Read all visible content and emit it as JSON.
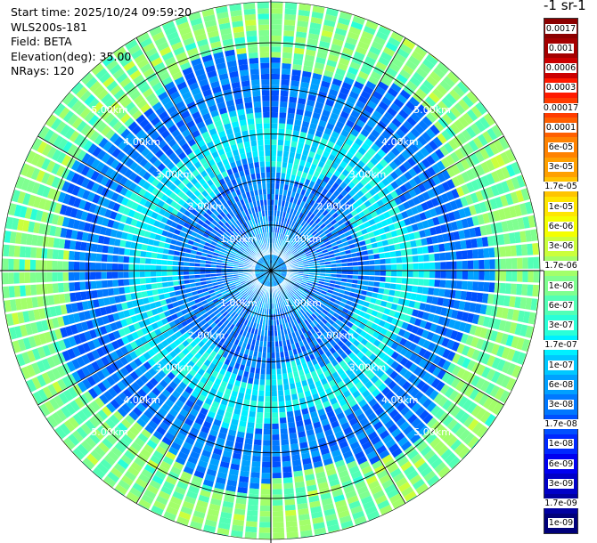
{
  "info": {
    "start_time": "Start time: 2025/10/24 09:59:20",
    "station": "WLS200s-181",
    "field": "Field: BETA",
    "elevation": "Elevation(deg): 35.00",
    "nrays": "NRays: 120"
  },
  "colorbar": {
    "title": "-1 sr-1",
    "levels": [
      {
        "label": "0.0017",
        "color": "#8b0000"
      },
      {
        "label": "0.001",
        "color": "#a40000"
      },
      {
        "label": "0.0006",
        "color": "#cc0000"
      },
      {
        "label": "0.0003",
        "color": "#ff1a00"
      },
      {
        "label": "0.00017",
        "color": "#ff3c00"
      },
      {
        "label": "0.0001",
        "color": "#ff5f00"
      },
      {
        "label": "6e-05",
        "color": "#ff8200"
      },
      {
        "label": "3e-05",
        "color": "#ffa000"
      },
      {
        "label": "1.7e-05",
        "color": "#ffc400"
      },
      {
        "label": "1e-05",
        "color": "#ffe600"
      },
      {
        "label": "6e-06",
        "color": "#f4ff00"
      },
      {
        "label": "3e-06",
        "color": "#cbff3c"
      },
      {
        "label": "1.7e-06",
        "color": "#a2ff6a"
      },
      {
        "label": "1e-06",
        "color": "#7fff90"
      },
      {
        "label": "6e-07",
        "color": "#52ffb6"
      },
      {
        "label": "3e-07",
        "color": "#2affd8"
      },
      {
        "label": "1.7e-07",
        "color": "#00f0ff"
      },
      {
        "label": "1e-07",
        "color": "#00c8ff"
      },
      {
        "label": "6e-08",
        "color": "#00a0ff"
      },
      {
        "label": "3e-08",
        "color": "#0078ff"
      },
      {
        "label": "1.7e-08",
        "color": "#0050ff"
      },
      {
        "label": "1e-08",
        "color": "#0028ff"
      },
      {
        "label": "6e-09",
        "color": "#0000f0"
      },
      {
        "label": "3e-09",
        "color": "#0000c8"
      },
      {
        "label": "1.7e-09",
        "color": "#0000a0"
      },
      {
        "label": "1e-09",
        "color": "#00007a"
      }
    ]
  },
  "chart_data": {
    "type": "heatmap",
    "projection": "polar",
    "field": "BETA",
    "elevation_deg": 35.0,
    "n_rays": 120,
    "range_rings_km": [
      1.0,
      2.0,
      3.0,
      4.0,
      5.0
    ],
    "range_ring_labels": [
      "1.00km",
      "2.00km",
      "3.00km",
      "4.00km",
      "5.00km"
    ],
    "max_range_km": 5.9,
    "spoke_step_deg": 30,
    "value_bands": [
      {
        "range_km": [
          0.0,
          1.0
        ],
        "dominant": "6e-08",
        "note": "near-field blue"
      },
      {
        "range_km": [
          1.0,
          2.2
        ],
        "dominant": "3e-08",
        "note": "blue speckle"
      },
      {
        "range_km": [
          2.2,
          3.3
        ],
        "dominant": "1.7e-07",
        "note": "cyan ring"
      },
      {
        "range_km": [
          3.3,
          4.6
        ],
        "dominant": "3e-08",
        "note": "blue band"
      },
      {
        "range_km": [
          4.6,
          5.9
        ],
        "dominant": "1e-06",
        "note": "green/yellow outer ring"
      }
    ]
  }
}
